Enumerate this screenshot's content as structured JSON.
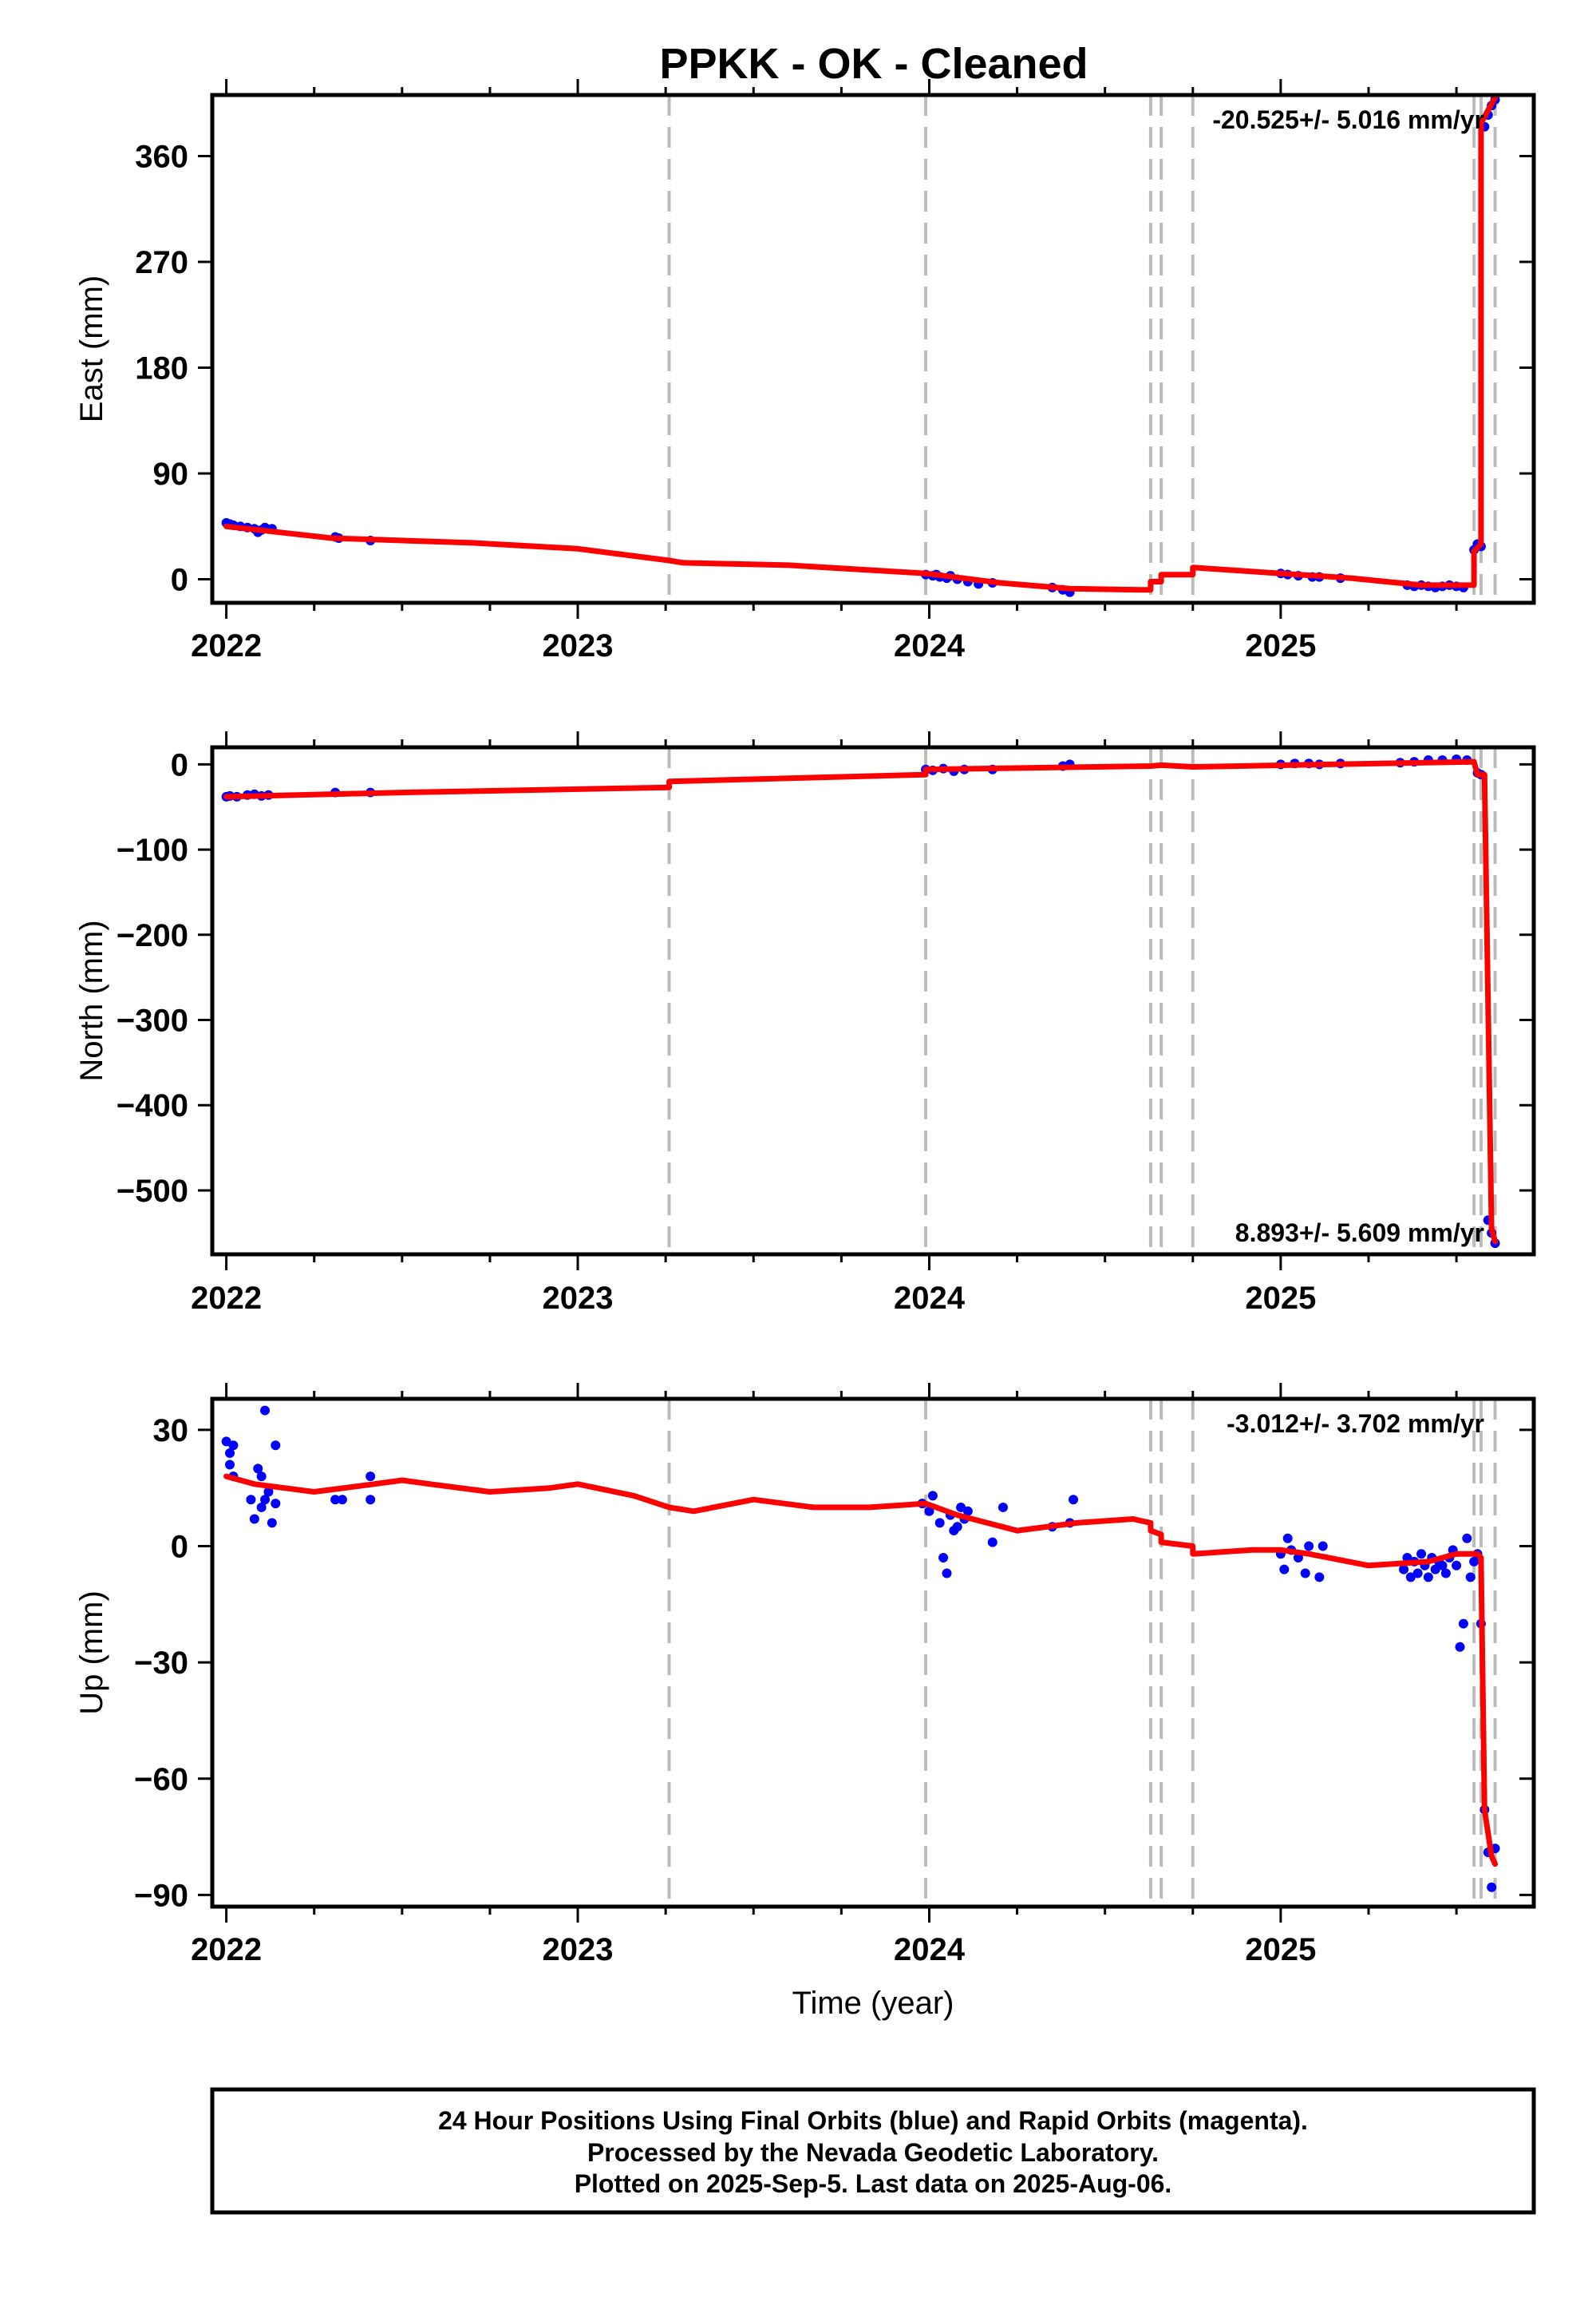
{
  "title": "PPKK  - OK - Cleaned",
  "footer": {
    "lines": [
      "24 Hour Positions Using Final Orbits (blue) and Rapid Orbits (magenta).",
      "Processed by the Nevada Geodetic Laboratory.",
      "Plotted on 2025-Sep-5. Last data on 2025-Aug-06."
    ]
  },
  "colors": {
    "data": "#0000ff",
    "model": "#ff0000",
    "breaks": "#bbbbbb",
    "frame": "#000000"
  },
  "chart_data": [
    {
      "type": "scatter",
      "component": "east",
      "ylabel": "East (mm)",
      "xlabel": "",
      "xlim": [
        2021.96,
        2025.72
      ],
      "ylim": [
        -20,
        412
      ],
      "xticks": [
        2022,
        2023,
        2024,
        2025
      ],
      "yticks": [
        0,
        90,
        180,
        270,
        360
      ],
      "ytick_labels": [
        "0",
        "90",
        "180",
        "270",
        "360"
      ],
      "rate_label": "-20.525+/- 5.016 mm/yr",
      "rate_position": "top-right",
      "breaks": [
        2023.26,
        2023.99,
        2024.63,
        2024.66,
        2024.75,
        2025.55,
        2025.57,
        2025.61
      ],
      "points": [
        [
          2022.0,
          48
        ],
        [
          2022.01,
          47
        ],
        [
          2022.02,
          46
        ],
        [
          2022.04,
          45
        ],
        [
          2022.06,
          44
        ],
        [
          2022.08,
          43
        ],
        [
          2022.09,
          40
        ],
        [
          2022.1,
          42
        ],
        [
          2022.11,
          44
        ],
        [
          2022.13,
          43
        ],
        [
          2022.31,
          36
        ],
        [
          2022.32,
          35
        ],
        [
          2022.41,
          33
        ],
        [
          2023.99,
          4
        ],
        [
          2024.01,
          3
        ],
        [
          2024.02,
          4
        ],
        [
          2024.03,
          2
        ],
        [
          2024.05,
          1
        ],
        [
          2024.06,
          3
        ],
        [
          2024.08,
          0
        ],
        [
          2024.11,
          -2
        ],
        [
          2024.14,
          -4
        ],
        [
          2024.18,
          -3
        ],
        [
          2024.35,
          -7
        ],
        [
          2024.38,
          -9
        ],
        [
          2024.4,
          -11
        ],
        [
          2025.0,
          5
        ],
        [
          2025.02,
          4
        ],
        [
          2025.05,
          3
        ],
        [
          2025.09,
          2
        ],
        [
          2025.11,
          2
        ],
        [
          2025.17,
          1
        ],
        [
          2025.36,
          -5
        ],
        [
          2025.38,
          -6
        ],
        [
          2025.4,
          -5
        ],
        [
          2025.42,
          -6
        ],
        [
          2025.44,
          -7
        ],
        [
          2025.46,
          -6
        ],
        [
          2025.48,
          -5
        ],
        [
          2025.5,
          -6
        ],
        [
          2025.52,
          -7
        ],
        [
          2025.55,
          25
        ],
        [
          2025.56,
          30
        ],
        [
          2025.57,
          28
        ],
        [
          2025.58,
          385
        ],
        [
          2025.59,
          395
        ],
        [
          2025.6,
          403
        ],
        [
          2025.61,
          408
        ]
      ],
      "model": [
        [
          2022.0,
          45
        ],
        [
          2022.3,
          35
        ],
        [
          2022.7,
          31
        ],
        [
          2023.0,
          26
        ],
        [
          2023.26,
          16
        ],
        [
          2023.3,
          14
        ],
        [
          2023.6,
          12
        ],
        [
          2023.99,
          5
        ],
        [
          2024.2,
          -3
        ],
        [
          2024.4,
          -8
        ],
        [
          2024.6,
          -9
        ],
        [
          2024.63,
          -9
        ],
        [
          2024.63,
          -2
        ],
        [
          2024.66,
          -2
        ],
        [
          2024.66,
          4
        ],
        [
          2024.75,
          4
        ],
        [
          2024.75,
          10
        ],
        [
          2025.0,
          5
        ],
        [
          2025.2,
          1
        ],
        [
          2025.4,
          -5
        ],
        [
          2025.55,
          -5
        ],
        [
          2025.55,
          24
        ],
        [
          2025.57,
          30
        ],
        [
          2025.57,
          388
        ],
        [
          2025.61,
          410
        ]
      ]
    },
    {
      "type": "scatter",
      "component": "north",
      "ylabel": "North (mm)",
      "xlabel": "",
      "xlim": [
        2021.96,
        2025.72
      ],
      "ylim": [
        -575,
        20
      ],
      "xticks": [
        2022,
        2023,
        2024,
        2025
      ],
      "yticks": [
        -500,
        -400,
        -300,
        -200,
        -100,
        0
      ],
      "ytick_labels": [
        "−500",
        "−400",
        "−300",
        "−200",
        "−100",
        "0"
      ],
      "rate_label": "8.893+/- 5.609 mm/yr",
      "rate_position": "bottom-right",
      "breaks": [
        2023.26,
        2023.99,
        2024.63,
        2024.66,
        2024.75,
        2025.55,
        2025.57,
        2025.61
      ],
      "points": [
        [
          2022.0,
          -38
        ],
        [
          2022.01,
          -37
        ],
        [
          2022.03,
          -38
        ],
        [
          2022.06,
          -36
        ],
        [
          2022.08,
          -35
        ],
        [
          2022.1,
          -37
        ],
        [
          2022.12,
          -36
        ],
        [
          2022.31,
          -33
        ],
        [
          2022.41,
          -33
        ],
        [
          2023.99,
          -6
        ],
        [
          2024.01,
          -7
        ],
        [
          2024.04,
          -5
        ],
        [
          2024.07,
          -8
        ],
        [
          2024.1,
          -6
        ],
        [
          2024.18,
          -6
        ],
        [
          2024.38,
          -2
        ],
        [
          2024.4,
          0
        ],
        [
          2025.0,
          0
        ],
        [
          2025.04,
          1
        ],
        [
          2025.08,
          1
        ],
        [
          2025.11,
          0
        ],
        [
          2025.17,
          1
        ],
        [
          2025.34,
          2
        ],
        [
          2025.38,
          3
        ],
        [
          2025.42,
          5
        ],
        [
          2025.46,
          5
        ],
        [
          2025.5,
          6
        ],
        [
          2025.53,
          5
        ],
        [
          2025.56,
          -10
        ],
        [
          2025.57,
          -12
        ],
        [
          2025.59,
          -535
        ],
        [
          2025.6,
          -550
        ],
        [
          2025.61,
          -562
        ]
      ],
      "model": [
        [
          2022.0,
          -38
        ],
        [
          2022.5,
          -33
        ],
        [
          2023.26,
          -27
        ],
        [
          2023.26,
          -20
        ],
        [
          2023.99,
          -12
        ],
        [
          2023.99,
          -6
        ],
        [
          2024.63,
          -2
        ],
        [
          2024.66,
          -1
        ],
        [
          2024.75,
          -3
        ],
        [
          2025.55,
          3
        ],
        [
          2025.56,
          -12
        ],
        [
          2025.58,
          -12
        ],
        [
          2025.6,
          -545
        ],
        [
          2025.61,
          -560
        ]
      ]
    },
    {
      "type": "scatter",
      "component": "up",
      "ylabel": "Up (mm)",
      "xlabel": "Time (year)",
      "xlim": [
        2021.96,
        2025.72
      ],
      "ylim": [
        -93,
        38
      ],
      "xticks": [
        2022,
        2023,
        2024,
        2025
      ],
      "yticks": [
        -90,
        -60,
        -30,
        0,
        30
      ],
      "ytick_labels": [
        "−90",
        "−60",
        "−30",
        "0",
        "30"
      ],
      "rate_label": "-3.012+/- 3.702 mm/yr",
      "rate_position": "top-right",
      "breaks": [
        2023.26,
        2023.99,
        2024.63,
        2024.66,
        2024.75,
        2025.55,
        2025.57,
        2025.61
      ],
      "points": [
        [
          2022.0,
          27
        ],
        [
          2022.01,
          24
        ],
        [
          2022.01,
          21
        ],
        [
          2022.02,
          26
        ],
        [
          2022.02,
          18
        ],
        [
          2022.07,
          12
        ],
        [
          2022.08,
          7
        ],
        [
          2022.09,
          20
        ],
        [
          2022.1,
          18
        ],
        [
          2022.1,
          10
        ],
        [
          2022.11,
          12
        ],
        [
          2022.11,
          35
        ],
        [
          2022.12,
          14
        ],
        [
          2022.13,
          6
        ],
        [
          2022.14,
          11
        ],
        [
          2022.14,
          26
        ],
        [
          2022.31,
          12
        ],
        [
          2022.33,
          12
        ],
        [
          2022.41,
          18
        ],
        [
          2022.41,
          12
        ],
        [
          2023.98,
          11
        ],
        [
          2024.0,
          9
        ],
        [
          2024.01,
          13
        ],
        [
          2024.03,
          6
        ],
        [
          2024.04,
          -3
        ],
        [
          2024.05,
          -7
        ],
        [
          2024.06,
          8
        ],
        [
          2024.07,
          4
        ],
        [
          2024.08,
          5
        ],
        [
          2024.09,
          10
        ],
        [
          2024.1,
          7
        ],
        [
          2024.11,
          9
        ],
        [
          2024.18,
          1
        ],
        [
          2024.21,
          10
        ],
        [
          2024.35,
          5
        ],
        [
          2024.4,
          6
        ],
        [
          2024.41,
          12
        ],
        [
          2025.0,
          -2
        ],
        [
          2025.01,
          -6
        ],
        [
          2025.02,
          2
        ],
        [
          2025.03,
          -1
        ],
        [
          2025.05,
          -3
        ],
        [
          2025.07,
          -7
        ],
        [
          2025.08,
          0
        ],
        [
          2025.11,
          -8
        ],
        [
          2025.12,
          0
        ],
        [
          2025.35,
          -6
        ],
        [
          2025.36,
          -3
        ],
        [
          2025.37,
          -8
        ],
        [
          2025.38,
          -4
        ],
        [
          2025.39,
          -7
        ],
        [
          2025.4,
          -2
        ],
        [
          2025.41,
          -5
        ],
        [
          2025.42,
          -8
        ],
        [
          2025.43,
          -3
        ],
        [
          2025.44,
          -6
        ],
        [
          2025.45,
          -4
        ],
        [
          2025.46,
          -5
        ],
        [
          2025.47,
          -7
        ],
        [
          2025.48,
          -3
        ],
        [
          2025.49,
          -1
        ],
        [
          2025.5,
          -5
        ],
        [
          2025.51,
          -26
        ],
        [
          2025.52,
          -20
        ],
        [
          2025.53,
          2
        ],
        [
          2025.54,
          -8
        ],
        [
          2025.55,
          -4
        ],
        [
          2025.56,
          -2
        ],
        [
          2025.57,
          -20
        ],
        [
          2025.58,
          -68
        ],
        [
          2025.59,
          -79
        ],
        [
          2025.6,
          -88
        ],
        [
          2025.61,
          -78
        ]
      ],
      "model": [
        [
          2022.0,
          18
        ],
        [
          2022.08,
          16
        ],
        [
          2022.25,
          14
        ],
        [
          2022.42,
          16
        ],
        [
          2022.5,
          17
        ],
        [
          2022.58,
          16
        ],
        [
          2022.75,
          14
        ],
        [
          2022.92,
          15
        ],
        [
          2023.0,
          16
        ],
        [
          2023.16,
          13
        ],
        [
          2023.26,
          10
        ],
        [
          2023.33,
          9
        ],
        [
          2023.5,
          12
        ],
        [
          2023.67,
          10
        ],
        [
          2023.83,
          10
        ],
        [
          2023.99,
          11
        ],
        [
          2024.08,
          8
        ],
        [
          2024.25,
          4
        ],
        [
          2024.42,
          6
        ],
        [
          2024.58,
          7
        ],
        [
          2024.63,
          6
        ],
        [
          2024.63,
          4
        ],
        [
          2024.66,
          3
        ],
        [
          2024.66,
          1
        ],
        [
          2024.75,
          0
        ],
        [
          2024.75,
          -2
        ],
        [
          2024.92,
          -1
        ],
        [
          2025.0,
          -1
        ],
        [
          2025.08,
          -2
        ],
        [
          2025.25,
          -5
        ],
        [
          2025.42,
          -4
        ],
        [
          2025.5,
          -2
        ],
        [
          2025.56,
          -2
        ],
        [
          2025.57,
          -3
        ],
        [
          2025.58,
          -68
        ],
        [
          2025.6,
          -80
        ],
        [
          2025.61,
          -82
        ]
      ]
    }
  ]
}
